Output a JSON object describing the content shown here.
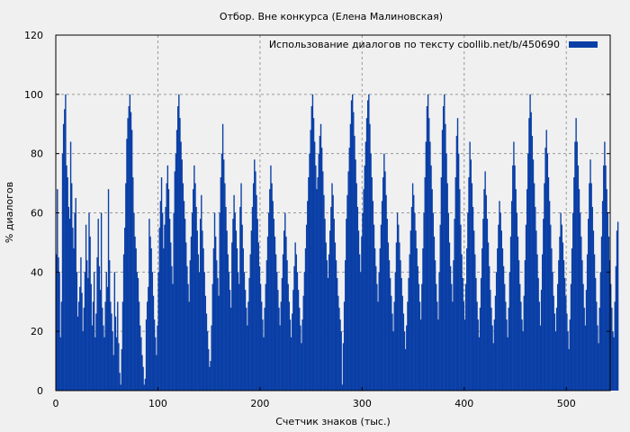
{
  "chart_data": {
    "type": "bar",
    "title": "Отбор. Вне конкурса (Елена Малиновская)",
    "xlabel": "Счетчик знаков (тыс.)",
    "ylabel": "% диалогов",
    "xlim": [
      0,
      543
    ],
    "ylim": [
      0,
      120
    ],
    "xticks": [
      0,
      100,
      200,
      300,
      400,
      500
    ],
    "yticks": [
      0,
      20,
      40,
      60,
      80,
      100,
      120
    ],
    "grid": true,
    "legend_position": "top-right",
    "bar_color": "#0a3fa6",
    "series": [
      {
        "name": "Использование диалогов по тексту  coollib.net/b/450690",
        "x_start": 0,
        "x_step": 1,
        "values": [
          46,
          68,
          45,
          40,
          18,
          30,
          80,
          90,
          95,
          100,
          76,
          72,
          62,
          58,
          84,
          70,
          55,
          48,
          60,
          65,
          40,
          25,
          30,
          35,
          45,
          33,
          20,
          28,
          40,
          56,
          44,
          38,
          60,
          52,
          36,
          22,
          30,
          40,
          18,
          26,
          45,
          58,
          42,
          34,
          60,
          28,
          22,
          18,
          30,
          40,
          35,
          68,
          44,
          30,
          26,
          20,
          12,
          40,
          25,
          18,
          30,
          16,
          6,
          2,
          14,
          30,
          46,
          55,
          70,
          85,
          92,
          96,
          100,
          94,
          88,
          72,
          60,
          52,
          48,
          40,
          38,
          30,
          22,
          18,
          12,
          8,
          2,
          4,
          24,
          30,
          35,
          58,
          52,
          48,
          40,
          32,
          24,
          18,
          12,
          22,
          40,
          55,
          64,
          72,
          60,
          48,
          56,
          62,
          70,
          76,
          68,
          58,
          50,
          42,
          36,
          60,
          74,
          80,
          88,
          96,
          100,
          92,
          84,
          78,
          70,
          64,
          58,
          50,
          42,
          36,
          30,
          44,
          52,
          60,
          68,
          76,
          70,
          62,
          54,
          46,
          40,
          58,
          66,
          54,
          48,
          40,
          32,
          26,
          20,
          14,
          8,
          10,
          22,
          36,
          48,
          60,
          52,
          44,
          38,
          32,
          60,
          72,
          80,
          90,
          78,
          70,
          62,
          54,
          46,
          40,
          34,
          28,
          50,
          58,
          66,
          60,
          54,
          48,
          40,
          36,
          62,
          70,
          56,
          48,
          40,
          34,
          28,
          22,
          30,
          38,
          46,
          54,
          62,
          70,
          78,
          74,
          66,
          58,
          50,
          42,
          36,
          30,
          24,
          18,
          28,
          36,
          44,
          52,
          60,
          68,
          76,
          70,
          64,
          58,
          52,
          46,
          40,
          34,
          28,
          22,
          30,
          38,
          46,
          54,
          60,
          52,
          44,
          36,
          30,
          24,
          18,
          26,
          34,
          42,
          50,
          46,
          40,
          34,
          28,
          22,
          16,
          24,
          32,
          40,
          48,
          56,
          64,
          72,
          80,
          88,
          96,
          100,
          92,
          84,
          76,
          68,
          72,
          80,
          86,
          90,
          82,
          74,
          66,
          58,
          50,
          44,
          38,
          46,
          54,
          62,
          70,
          66,
          58,
          50,
          44,
          38,
          32,
          28,
          24,
          20,
          2,
          16,
          30,
          44,
          58,
          66,
          74,
          82,
          90,
          98,
          100,
          94,
          86,
          78,
          70,
          62,
          54,
          46,
          40,
          52,
          60,
          68,
          76,
          84,
          92,
          98,
          100,
          90,
          80,
          72,
          64,
          56,
          48,
          42,
          36,
          30,
          40,
          48,
          56,
          64,
          72,
          80,
          74,
          66,
          58,
          50,
          44,
          38,
          32,
          26,
          20,
          30,
          40,
          50,
          60,
          56,
          50,
          44,
          38,
          32,
          26,
          20,
          14,
          22,
          30,
          38,
          46,
          54,
          62,
          70,
          66,
          60,
          54,
          48,
          42,
          36,
          30,
          24,
          36,
          48,
          60,
          72,
          84,
          96,
          100,
          92,
          84,
          76,
          68,
          60,
          52,
          44,
          36,
          30,
          24,
          40,
          56,
          72,
          88,
          96,
          100,
          90,
          80,
          70,
          60,
          50,
          42,
          36,
          30,
          44,
          58,
          72,
          86,
          92,
          80,
          68,
          56,
          46,
          38,
          30,
          24,
          36,
          48,
          60,
          72,
          84,
          78,
          70,
          62,
          54,
          46,
          38,
          30,
          24,
          18,
          28,
          38,
          48,
          58,
          68,
          74,
          66,
          58,
          50,
          42,
          34,
          28,
          22,
          16,
          24,
          32,
          40,
          48,
          56,
          64,
          60,
          54,
          48,
          42,
          36,
          30,
          24,
          18,
          28,
          40,
          52,
          64,
          76,
          84,
          76,
          68,
          60,
          52,
          44,
          36,
          30,
          24,
          20,
          32,
          44,
          56,
          68,
          80,
          92,
          100,
          94,
          86,
          78,
          70,
          62,
          54,
          46,
          38,
          30,
          22,
          34,
          46,
          58,
          70,
          82,
          88,
          80,
          72,
          64,
          56,
          48,
          40,
          32,
          26,
          20,
          28,
          36,
          44,
          52,
          60,
          56,
          50,
          44,
          38,
          32,
          26,
          20,
          14,
          24,
          36,
          48,
          60,
          72,
          84,
          92,
          84,
          76,
          68,
          60,
          52,
          44,
          36,
          28,
          22,
          34,
          46,
          58,
          70,
          78,
          70,
          62,
          54,
          46,
          38,
          30,
          22,
          16,
          28,
          40,
          52,
          64,
          76,
          84,
          76,
          68,
          60,
          52,
          44,
          36,
          28,
          20,
          18,
          30,
          42,
          54,
          57
        ]
      }
    ]
  }
}
